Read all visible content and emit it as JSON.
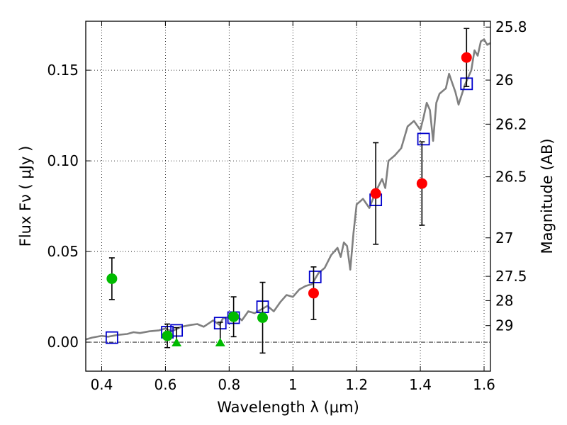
{
  "chart_data": {
    "type": "scatter",
    "title": "",
    "xlabel": "Wavelength  λ (μm)",
    "ylabel": "Flux  Fν  ( μJy )",
    "y2label": "Magnitude (AB)",
    "xlim": [
      0.35,
      1.62
    ],
    "ylim": [
      -0.016,
      0.177
    ],
    "grid": true,
    "legend": "none",
    "x_ticks": [
      {
        "value": 0.4,
        "label": "0.4"
      },
      {
        "value": 0.6,
        "label": "0.6"
      },
      {
        "value": 0.8,
        "label": "0.8"
      },
      {
        "value": 1.0,
        "label": "1"
      },
      {
        "value": 1.2,
        "label": "1.2"
      },
      {
        "value": 1.4,
        "label": "1.4"
      },
      {
        "value": 1.6,
        "label": "1.6"
      }
    ],
    "y_ticks": [
      {
        "value": 0.0,
        "label": "0.00"
      },
      {
        "value": 0.05,
        "label": "0.05"
      },
      {
        "value": 0.1,
        "label": "0.10"
      },
      {
        "value": 0.15,
        "label": "0.15"
      }
    ],
    "y2_ticks": [
      {
        "value": 25.8,
        "label": "25.8"
      },
      {
        "value": 26.0,
        "label": "26"
      },
      {
        "value": 26.2,
        "label": "26.2"
      },
      {
        "value": 26.5,
        "label": "26.5"
      },
      {
        "value": 27.0,
        "label": "27"
      },
      {
        "value": 27.5,
        "label": "27.5"
      },
      {
        "value": 28.0,
        "label": "28"
      },
      {
        "value": 29.0,
        "label": "29"
      }
    ],
    "series": [
      {
        "kind": "model-spectrum",
        "color": "#808080",
        "points": [
          [
            0.35,
            0.0015
          ],
          [
            0.37,
            0.0025
          ],
          [
            0.4,
            0.0035
          ],
          [
            0.42,
            0.003
          ],
          [
            0.45,
            0.004
          ],
          [
            0.48,
            0.0045
          ],
          [
            0.5,
            0.0055
          ],
          [
            0.52,
            0.005
          ],
          [
            0.55,
            0.006
          ],
          [
            0.58,
            0.0065
          ],
          [
            0.6,
            0.0075
          ],
          [
            0.62,
            0.006
          ],
          [
            0.65,
            0.0085
          ],
          [
            0.68,
            0.0095
          ],
          [
            0.7,
            0.01
          ],
          [
            0.72,
            0.0085
          ],
          [
            0.75,
            0.012
          ],
          [
            0.77,
            0.0095
          ],
          [
            0.78,
            0.013
          ],
          [
            0.8,
            0.014
          ],
          [
            0.82,
            0.015
          ],
          [
            0.84,
            0.012
          ],
          [
            0.86,
            0.017
          ],
          [
            0.88,
            0.016
          ],
          [
            0.9,
            0.018
          ],
          [
            0.92,
            0.02
          ],
          [
            0.94,
            0.017
          ],
          [
            0.96,
            0.022
          ],
          [
            0.98,
            0.026
          ],
          [
            1.0,
            0.025
          ],
          [
            1.02,
            0.029
          ],
          [
            1.04,
            0.031
          ],
          [
            1.06,
            0.032
          ],
          [
            1.08,
            0.038
          ],
          [
            1.1,
            0.041
          ],
          [
            1.12,
            0.048
          ],
          [
            1.14,
            0.052
          ],
          [
            1.15,
            0.047
          ],
          [
            1.16,
            0.055
          ],
          [
            1.17,
            0.053
          ],
          [
            1.18,
            0.04
          ],
          [
            1.19,
            0.06
          ],
          [
            1.2,
            0.076
          ],
          [
            1.22,
            0.079
          ],
          [
            1.24,
            0.074
          ],
          [
            1.26,
            0.083
          ],
          [
            1.28,
            0.09
          ],
          [
            1.29,
            0.085
          ],
          [
            1.3,
            0.1
          ],
          [
            1.32,
            0.103
          ],
          [
            1.34,
            0.107
          ],
          [
            1.36,
            0.119
          ],
          [
            1.38,
            0.122
          ],
          [
            1.4,
            0.117
          ],
          [
            1.41,
            0.124
          ],
          [
            1.42,
            0.132
          ],
          [
            1.43,
            0.128
          ],
          [
            1.44,
            0.111
          ],
          [
            1.45,
            0.132
          ],
          [
            1.46,
            0.137
          ],
          [
            1.48,
            0.14
          ],
          [
            1.49,
            0.148
          ],
          [
            1.5,
            0.143
          ],
          [
            1.51,
            0.138
          ],
          [
            1.52,
            0.131
          ],
          [
            1.54,
            0.142
          ],
          [
            1.56,
            0.15
          ],
          [
            1.57,
            0.161
          ],
          [
            1.58,
            0.158
          ],
          [
            1.59,
            0.166
          ],
          [
            1.6,
            0.167
          ],
          [
            1.61,
            0.164
          ],
          [
            1.62,
            0.165
          ]
        ]
      },
      {
        "kind": "model-photometry",
        "marker": "open-square",
        "color": "#0000cc",
        "points": [
          {
            "x": 0.432,
            "y": 0.0025
          },
          {
            "x": 0.606,
            "y": 0.0055
          },
          {
            "x": 0.635,
            "y": 0.0065
          },
          {
            "x": 0.772,
            "y": 0.0105
          },
          {
            "x": 0.814,
            "y": 0.0135
          },
          {
            "x": 0.905,
            "y": 0.0195
          },
          {
            "x": 1.07,
            "y": 0.036
          },
          {
            "x": 1.26,
            "y": 0.0785
          },
          {
            "x": 1.41,
            "y": 0.112
          },
          {
            "x": 1.545,
            "y": 0.1425
          }
        ]
      },
      {
        "kind": "observed-optical",
        "marker": "filled-circle",
        "color": "#00bb00",
        "points": [
          {
            "x": 0.432,
            "y": 0.035,
            "yerr": 0.0115
          },
          {
            "x": 0.606,
            "y": 0.0035,
            "yerr": 0.0065
          },
          {
            "x": 0.814,
            "y": 0.014,
            "yerr": 0.011
          },
          {
            "x": 0.905,
            "y": 0.0135,
            "yerr": 0.0195
          }
        ]
      },
      {
        "kind": "upper-limits",
        "marker": "filled-triangle",
        "color": "#00bb00",
        "points": [
          {
            "x": 0.635,
            "y": 0.0,
            "yerr_up": 0.008
          },
          {
            "x": 0.772,
            "y": 0.0,
            "yerr_up": 0.011
          }
        ]
      },
      {
        "kind": "observed-ir",
        "marker": "filled-circle",
        "color": "#ff0000",
        "points": [
          {
            "x": 1.065,
            "y": 0.027,
            "yerr": 0.0145
          },
          {
            "x": 1.26,
            "y": 0.082,
            "yerr": 0.028
          },
          {
            "x": 1.405,
            "y": 0.0875,
            "yerr": 0.023
          },
          {
            "x": 1.545,
            "y": 0.157,
            "yerr": 0.016
          }
        ]
      }
    ]
  }
}
